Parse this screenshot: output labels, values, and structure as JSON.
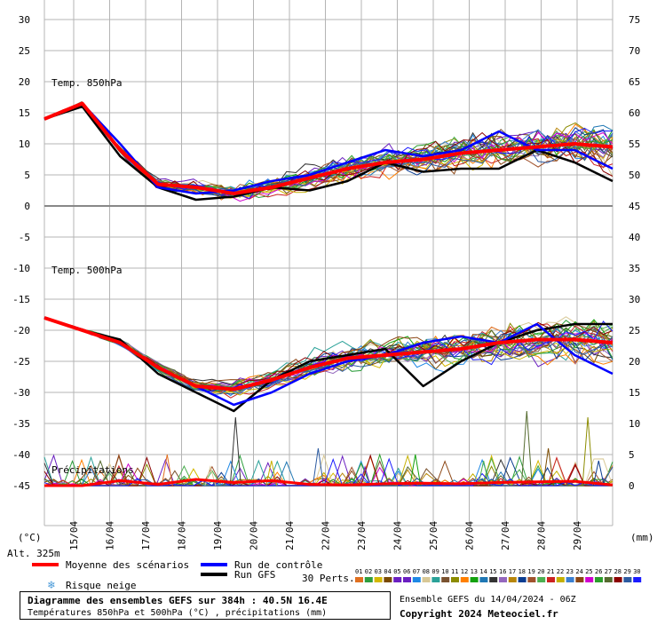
{
  "chart_data": [
    {
      "type": "line",
      "title": "Temp. 850hPa",
      "ylabel": "(°C)",
      "ylim": [
        0,
        30
      ],
      "x": [
        "15/04",
        "16/04",
        "17/04",
        "18/04",
        "19/04",
        "20/04",
        "21/04",
        "22/04",
        "23/04",
        "24/04",
        "25/04",
        "26/04",
        "27/04",
        "28/04",
        "29/04",
        "30/04"
      ],
      "series": [
        {
          "name": "Moyenne des scénarios",
          "color": "#ff0000",
          "values": [
            14,
            16.5,
            9,
            3.5,
            3,
            2,
            3,
            4.5,
            6,
            7,
            7.5,
            8.5,
            9,
            9.5,
            10,
            9.5
          ]
        },
        {
          "name": "Run de contrôle",
          "color": "#0000ff",
          "values": [
            14,
            16.5,
            10,
            3,
            2,
            2.5,
            4,
            5,
            7,
            9,
            8,
            9,
            12,
            9,
            9,
            6
          ]
        },
        {
          "name": "Run GFS",
          "color": "#000000",
          "values": [
            14,
            16,
            8,
            3,
            1,
            1.5,
            3,
            2.5,
            4,
            7,
            5.5,
            6,
            6,
            9,
            7,
            4
          ]
        }
      ]
    },
    {
      "type": "line",
      "title": "Temp. 500hPa",
      "ylabel": "(°C)",
      "ylim": [
        -30,
        -10
      ],
      "x": [
        "15/04",
        "16/04",
        "17/04",
        "18/04",
        "19/04",
        "20/04",
        "21/04",
        "22/04",
        "23/04",
        "24/04",
        "25/04",
        "26/04",
        "27/04",
        "28/04",
        "29/04",
        "30/04"
      ],
      "series": [
        {
          "name": "Moyenne des scénarios",
          "color": "#ff0000",
          "values": [
            -13,
            -15,
            -17,
            -21,
            -24,
            -24.5,
            -23,
            -21,
            -19.5,
            -19,
            -18.5,
            -18,
            -17,
            -16.5,
            -16.5,
            -17
          ]
        },
        {
          "name": "Run de contrôle",
          "color": "#0000ff",
          "values": [
            -13,
            -15,
            -17,
            -21,
            -24,
            -27,
            -25,
            -22,
            -20,
            -19,
            -17,
            -16,
            -17,
            -14,
            -19,
            -22
          ]
        },
        {
          "name": "Run GFS",
          "color": "#000000",
          "values": [
            -13,
            -15,
            -16.5,
            -22,
            -25,
            -28,
            -23,
            -20,
            -19,
            -18,
            -24,
            -20,
            -17,
            -15,
            -14,
            -14
          ]
        }
      ]
    },
    {
      "type": "line",
      "title": "Précipitations",
      "ylabel": "(mm)",
      "ylim": [
        0,
        15
      ],
      "x": [
        "15/04",
        "16/04",
        "17/04",
        "18/04",
        "19/04",
        "20/04",
        "21/04",
        "22/04",
        "23/04",
        "24/04",
        "25/04",
        "26/04",
        "27/04",
        "28/04",
        "29/04",
        "30/04"
      ],
      "spikes": [
        [
          17.6,
          5
        ],
        [
          18.8,
          3
        ],
        [
          19.5,
          11
        ],
        [
          20.5,
          4
        ],
        [
          21.8,
          6
        ],
        [
          23.1,
          3
        ],
        [
          24.5,
          5
        ],
        [
          26.4,
          4
        ],
        [
          27.6,
          12
        ],
        [
          28.2,
          6
        ],
        [
          29.3,
          11
        ],
        [
          29.6,
          4
        ]
      ],
      "series": [
        {
          "name": "Moyenne des scénarios",
          "color": "#ff0000",
          "values": [
            0,
            0,
            0.8,
            0.2,
            1,
            0.5,
            0.8,
            0.2,
            0.1,
            0.3,
            0.4,
            0.3,
            0.5,
            0.6,
            0.7,
            0.1
          ]
        }
      ]
    }
  ],
  "axes": {
    "left_ticks": [
      "30",
      "25",
      "20",
      "15",
      "10",
      "5",
      "0",
      "-5",
      "-10",
      "-15",
      "-20",
      "-25",
      "-30",
      "-35",
      "-40",
      "-45"
    ],
    "right_ticks": [
      "75",
      "70",
      "65",
      "60",
      "55",
      "50",
      "45",
      "40",
      "35",
      "30",
      "25",
      "20",
      "15",
      "10",
      "5",
      "0"
    ],
    "left_unit": "(°C)",
    "right_unit": "(mm)",
    "x_ticks": [
      "15/04",
      "16/04",
      "17/04",
      "18/04",
      "19/04",
      "20/04",
      "21/04",
      "22/04",
      "23/04",
      "24/04",
      "25/04",
      "26/04",
      "27/04",
      "28/04",
      "29/04",
      "30/04"
    ]
  },
  "labels": {
    "t850": "Temp. 850hPa",
    "t500": "Temp. 500hPa",
    "precip": "Précipitations",
    "altitude": "Alt. 325m",
    "perts": "30 Perts."
  },
  "legend": {
    "mean": "Moyenne des scénarios",
    "control": "Run de contrôle",
    "gfs": "Run GFS",
    "snow": "Risque neige",
    "snow_icon": "snowflake-icon"
  },
  "perturbations": {
    "numbers": [
      "01",
      "02",
      "03",
      "04",
      "05",
      "06",
      "07",
      "08",
      "09",
      "10",
      "11",
      "12",
      "13",
      "14",
      "15",
      "16",
      "17",
      "18",
      "19",
      "20",
      "21",
      "22",
      "23",
      "24",
      "25",
      "26",
      "27",
      "28",
      "29",
      "30"
    ],
    "colors": [
      "#e07020",
      "#2e9e3e",
      "#d4b800",
      "#7a4a00",
      "#6a1fc1",
      "#6a1fc1",
      "#1e88e5",
      "#d8c896",
      "#2aa198",
      "#7a5230",
      "#8c8c00",
      "#ff7f00",
      "#13a10e",
      "#1f77b4",
      "#333333",
      "#9467bd",
      "#b8860b",
      "#0b3d91",
      "#a0522d",
      "#4caf50",
      "#cc2222",
      "#c5b000",
      "#3a7fd0",
      "#8b4513",
      "#d000d0",
      "#2ca02c",
      "#556b2f",
      "#8b0000",
      "#2c5aa0",
      "#1a1aff"
    ]
  },
  "footer": {
    "title": "Diagramme des ensembles GEFS sur 384h : 40.5N 16.4E",
    "subtitle": "Températures 850hPa et 500hPa (°C) , précipitations (mm)",
    "run_info": "Ensemble GEFS du 14/04/2024 - 06Z",
    "copyright": "Copyright 2024 Meteociel.fr"
  },
  "colors": {
    "grid": "#b4b4b4",
    "mean": "#ff0000",
    "control": "#0000ff",
    "gfs": "#000000",
    "snow": "#4a9ad8"
  }
}
